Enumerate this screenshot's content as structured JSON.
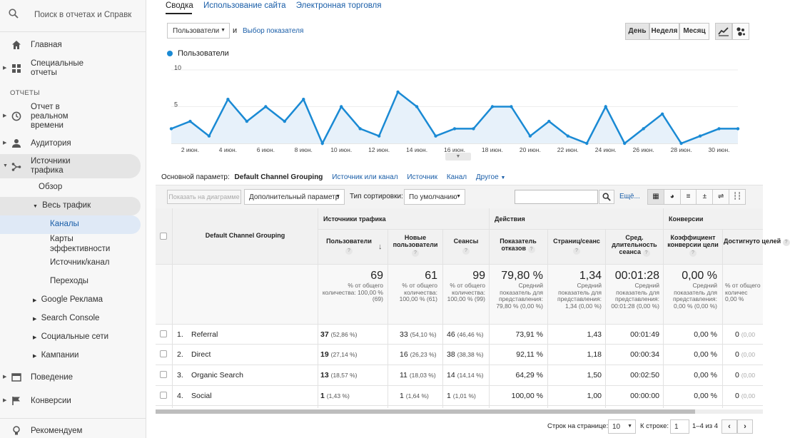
{
  "sidebar": {
    "search_placeholder": "Поиск в отчетах и Справк",
    "home": "Главная",
    "custom_reports": "Специальные отчеты",
    "section_reports": "ОТЧЕТЫ",
    "realtime": "Отчет в реальном времени",
    "audience": "Аудитория",
    "acquisition": "Источники трафика",
    "overview": "Обзор",
    "all_traffic": "Весь трафик",
    "channels": "Каналы",
    "treemaps": "Карты эффективности",
    "source_medium": "Источник/канал",
    "referrals": "Переходы",
    "google_ads": "Google Реклама",
    "search_console": "Search Console",
    "social": "Социальные сети",
    "campaigns": "Кампании",
    "behavior": "Поведение",
    "conversions": "Конверсии",
    "discover": "Рекомендуем"
  },
  "tabs": {
    "summary": "Сводка",
    "site_usage": "Использование сайта",
    "ecommerce": "Электронная торговля"
  },
  "metric": {
    "selected": "Пользователи",
    "and": "и",
    "choose": "Выбор показателя"
  },
  "period": {
    "day": "День",
    "week": "Неделя",
    "month": "Месяц"
  },
  "chart_data": {
    "type": "area",
    "legend": "Пользователи",
    "color": "#1a8ad4",
    "ylim": [
      0,
      10
    ],
    "yticks": [
      "10",
      "5"
    ],
    "xticks": [
      "2 июн.",
      "4 июн.",
      "6 июн.",
      "8 июн.",
      "10 июн.",
      "12 июн.",
      "14 июн.",
      "16 июн.",
      "18 июн.",
      "20 июн.",
      "22 июн.",
      "24 июн.",
      "26 июн.",
      "28 июн.",
      "30 июн."
    ],
    "x": [
      "1 июн.",
      "2 июн.",
      "3 июн.",
      "4 июн.",
      "5 июн.",
      "6 июн.",
      "7 июн.",
      "8 июн.",
      "9 июн.",
      "10 июн.",
      "11 июн.",
      "12 июн.",
      "13 июн.",
      "14 июн.",
      "15 июн.",
      "16 июн.",
      "17 июн.",
      "18 июн.",
      "19 июн.",
      "20 июн.",
      "21 июн.",
      "22 июн.",
      "23 июн.",
      "24 июн.",
      "25 июн.",
      "26 июн.",
      "27 июн.",
      "28 июн.",
      "29 июн.",
      "30 июн.",
      "1 июл."
    ],
    "values": [
      2,
      3,
      1,
      6,
      3,
      5,
      3,
      6,
      0,
      5,
      2,
      1,
      7,
      5,
      1,
      2,
      2,
      5,
      5,
      1,
      3,
      1,
      0,
      5,
      0,
      2,
      4,
      0,
      1,
      2,
      2
    ]
  },
  "dimension": {
    "label": "Основной параметр:",
    "primary": "Default Channel Grouping",
    "source_medium": "Источник или канал",
    "source": "Источник",
    "medium": "Канал",
    "other": "Другое"
  },
  "toolbar": {
    "plot_rows": "Показать на диаграмме",
    "secondary": "Дополнительный параметр",
    "sort_type": "Тип сортировки:",
    "sort_value": "По умолчанию",
    "more": "Ещё..."
  },
  "table": {
    "dim_header": "Default Channel Grouping",
    "groups": [
      "Источники трафика",
      "Действия",
      "Конверсии"
    ],
    "columns": [
      "Пользователи",
      "Новые пользователи",
      "Сеансы",
      "Показатель отказов",
      "Страниц/сеанс",
      "Сред. длительность сеанса",
      "Коэффициент конверсии цели",
      "Достигнуто целей"
    ],
    "totals": {
      "users": "69",
      "users_sub": "% от общего количества: 100,00 % (69)",
      "new_users": "61",
      "new_users_sub": "% от общего количества: 100,00 % (61)",
      "sessions": "99",
      "sessions_sub": "% от общего количества: 100,00 % (99)",
      "bounce": "79,80 %",
      "bounce_sub": "Средний показатель для представления: 79,80 % (0,00 %)",
      "pages": "1,34",
      "pages_sub": "Средний показатель для представления: 1,34 (0,00 %)",
      "duration": "00:01:28",
      "duration_sub": "Средний показатель для представления: 00:01:28 (0,00 %)",
      "conv": "0,00 %",
      "conv_sub": "Средний показатель для представления: 0,00 % (0,00 %)",
      "goals_sub": "% от общего количес 0,00 %"
    },
    "rows": [
      {
        "n": "1.",
        "name": "Referral",
        "users": "37",
        "users_p": "(52,86 %)",
        "new": "33",
        "new_p": "(54,10 %)",
        "sess": "46",
        "sess_p": "(46,46 %)",
        "bounce": "73,91 %",
        "pages": "1,43",
        "dur": "00:01:49",
        "conv": "0,00 %",
        "goals": "0",
        "goals_p": "(0,00"
      },
      {
        "n": "2.",
        "name": "Direct",
        "users": "19",
        "users_p": "(27,14 %)",
        "new": "16",
        "new_p": "(26,23 %)",
        "sess": "38",
        "sess_p": "(38,38 %)",
        "bounce": "92,11 %",
        "pages": "1,18",
        "dur": "00:00:34",
        "conv": "0,00 %",
        "goals": "0",
        "goals_p": "(0,00"
      },
      {
        "n": "3.",
        "name": "Organic Search",
        "users": "13",
        "users_p": "(18,57 %)",
        "new": "11",
        "new_p": "(18,03 %)",
        "sess": "14",
        "sess_p": "(14,14 %)",
        "bounce": "64,29 %",
        "pages": "1,50",
        "dur": "00:02:50",
        "conv": "0,00 %",
        "goals": "0",
        "goals_p": "(0,00"
      },
      {
        "n": "4.",
        "name": "Social",
        "users": "1",
        "users_p": "(1,43 %)",
        "new": "1",
        "new_p": "(1,64 %)",
        "sess": "1",
        "sess_p": "(1,01 %)",
        "bounce": "100,00 %",
        "pages": "1,00",
        "dur": "00:00:00",
        "conv": "0,00 %",
        "goals": "0",
        "goals_p": "(0,00"
      }
    ]
  },
  "pagination": {
    "rows_label": "Строк на странице:",
    "rows_value": "10",
    "goto_label": "К строке:",
    "goto_value": "1",
    "range": "1–4 из 4"
  }
}
